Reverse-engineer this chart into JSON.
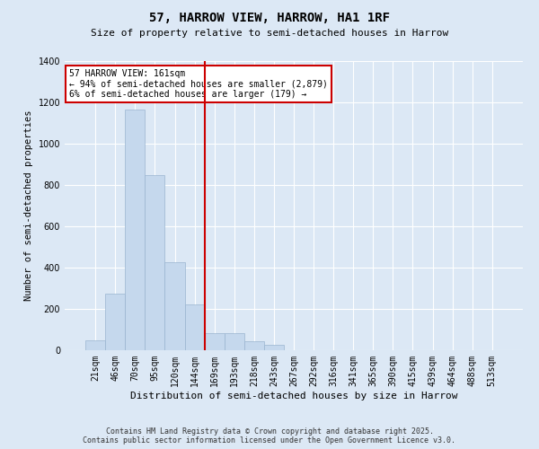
{
  "title": "57, HARROW VIEW, HARROW, HA1 1RF",
  "subtitle": "Size of property relative to semi-detached houses in Harrow",
  "xlabel": "Distribution of semi-detached houses by size in Harrow",
  "ylabel": "Number of semi-detached properties",
  "bin_labels": [
    "21sqm",
    "46sqm",
    "70sqm",
    "95sqm",
    "120sqm",
    "144sqm",
    "169sqm",
    "193sqm",
    "218sqm",
    "243sqm",
    "267sqm",
    "292sqm",
    "316sqm",
    "341sqm",
    "365sqm",
    "390sqm",
    "415sqm",
    "439sqm",
    "464sqm",
    "488sqm",
    "513sqm"
  ],
  "bar_values": [
    47,
    272,
    1165,
    845,
    425,
    220,
    82,
    82,
    45,
    25,
    0,
    0,
    0,
    0,
    0,
    0,
    0,
    0,
    0,
    0,
    0
  ],
  "bar_color": "#c5d8ed",
  "bar_edge_color": "#9ab5d0",
  "property_line_color": "#cc0000",
  "annotation_title": "57 HARROW VIEW: 161sqm",
  "annotation_line1": "← 94% of semi-detached houses are smaller (2,879)",
  "annotation_line2": "6% of semi-detached houses are larger (179) →",
  "ylim": [
    0,
    1400
  ],
  "yticks": [
    0,
    200,
    400,
    600,
    800,
    1000,
    1200,
    1400
  ],
  "background_color": "#dce8f5",
  "plot_background": "#dce8f5",
  "grid_color": "#ffffff",
  "footer_line1": "Contains HM Land Registry data © Crown copyright and database right 2025.",
  "footer_line2": "Contains public sector information licensed under the Open Government Licence v3.0."
}
